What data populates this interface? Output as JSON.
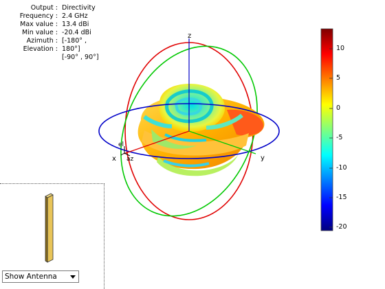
{
  "info": {
    "output_label": "Output :",
    "output_value": "Directivity",
    "frequency_label": "Frequency :",
    "frequency_value": "2.4 GHz",
    "max_label": "Max value :",
    "max_value": "13.4 dBi",
    "min_label": "Min value :",
    "min_value": "-20.4 dBi",
    "azimuth_label": "Azimuth :",
    "azimuth_value": "[-180° ,",
    "elevation_label": "Elevation :",
    "elevation_value": "180°]",
    "elevation_range": "[-90° , 90°]"
  },
  "axes": {
    "x": "x",
    "y": "y",
    "z": "z",
    "el": "el",
    "az": "az"
  },
  "colorbar": {
    "ticks": [
      "10",
      "5",
      "0",
      "-5",
      "-10",
      "-15",
      "-20"
    ],
    "colors": [
      "#00007f",
      "#0000ff",
      "#007fff",
      "#00ffff",
      "#7fff7f",
      "#ffff00",
      "#ff7f00",
      "#ff0000",
      "#7f0000"
    ]
  },
  "colors": {
    "azimuth_circle": "#0000c8",
    "elevation_circle_red": "#e00000",
    "elevation_circle_green": "#00c800",
    "z_axis": "#0000c8"
  },
  "antenna_control": {
    "selected": "Show Antenna",
    "arrow_icon": "triangle-down-icon"
  }
}
